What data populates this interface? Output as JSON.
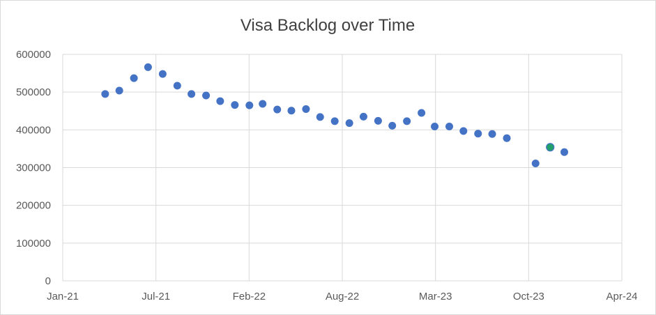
{
  "chart_data": {
    "type": "scatter",
    "title": "Visa Backlog over Time",
    "xlabel": "",
    "ylabel": "",
    "xlim": [
      "2021-01-01",
      "2024-04-01"
    ],
    "ylim": [
      0,
      600000
    ],
    "x_ticks": [
      "Jan-21",
      "Jul-21",
      "Feb-22",
      "Aug-22",
      "Mar-23",
      "Oct-23",
      "Apr-24"
    ],
    "y_ticks": [
      "0",
      "100000",
      "200000",
      "300000",
      "400000",
      "500000",
      "600000"
    ],
    "grid": true,
    "legend": "none",
    "colors": {
      "series": "#4472c4",
      "highlight": "#22a06b",
      "grid": "#d9d9d9",
      "text": "#595959",
      "title": "#404040"
    },
    "series": [
      {
        "x": [
          "2021-04-01",
          "2021-05-01",
          "2021-06-01",
          "2021-07-01",
          "2021-08-01",
          "2021-09-01",
          "2021-10-01",
          "2021-11-01",
          "2021-12-01",
          "2022-01-01",
          "2022-02-01",
          "2022-03-01",
          "2022-04-01",
          "2022-05-01",
          "2022-06-01",
          "2022-07-01",
          "2022-08-01",
          "2022-09-01",
          "2022-10-01",
          "2022-11-01",
          "2022-12-01",
          "2023-01-01",
          "2023-02-01",
          "2023-03-01",
          "2023-04-01",
          "2023-05-01",
          "2023-06-01",
          "2023-07-01",
          "2023-08-01",
          "2023-09-01",
          "2023-10-01",
          "2023-11-01",
          "2023-12-01"
        ],
        "y": [
          495000,
          504000,
          537000,
          566000,
          548000,
          517000,
          495000,
          491000,
          476000,
          466000,
          465000,
          469000,
          454000,
          451000,
          455000,
          434000,
          423000,
          418000,
          435000,
          424000,
          411000,
          423000,
          445000,
          409000,
          409000,
          397000,
          390000,
          389000,
          378000,
          null,
          311000,
          354000,
          341000
        ],
        "highlight_index": 31
      }
    ]
  }
}
